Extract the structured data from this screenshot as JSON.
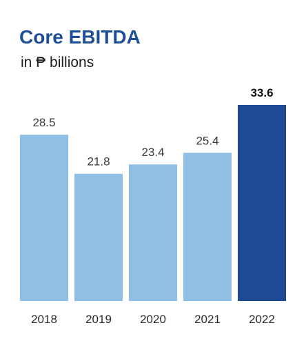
{
  "chart_data": {
    "type": "bar",
    "title": "Core EBITDA",
    "subtitle": "in ₱ billions",
    "xlabel": "",
    "ylabel": "",
    "categories": [
      "2018",
      "2019",
      "2020",
      "2021",
      "2022"
    ],
    "values": [
      28.5,
      21.8,
      23.4,
      25.4,
      33.6
    ],
    "ylim": [
      0,
      33.6
    ],
    "grid": false,
    "legend": "none",
    "highlight_index": 4,
    "colors": {
      "bar": "#8fbfe4",
      "highlight": "#1d4a95",
      "title": "#1f4e99"
    }
  }
}
